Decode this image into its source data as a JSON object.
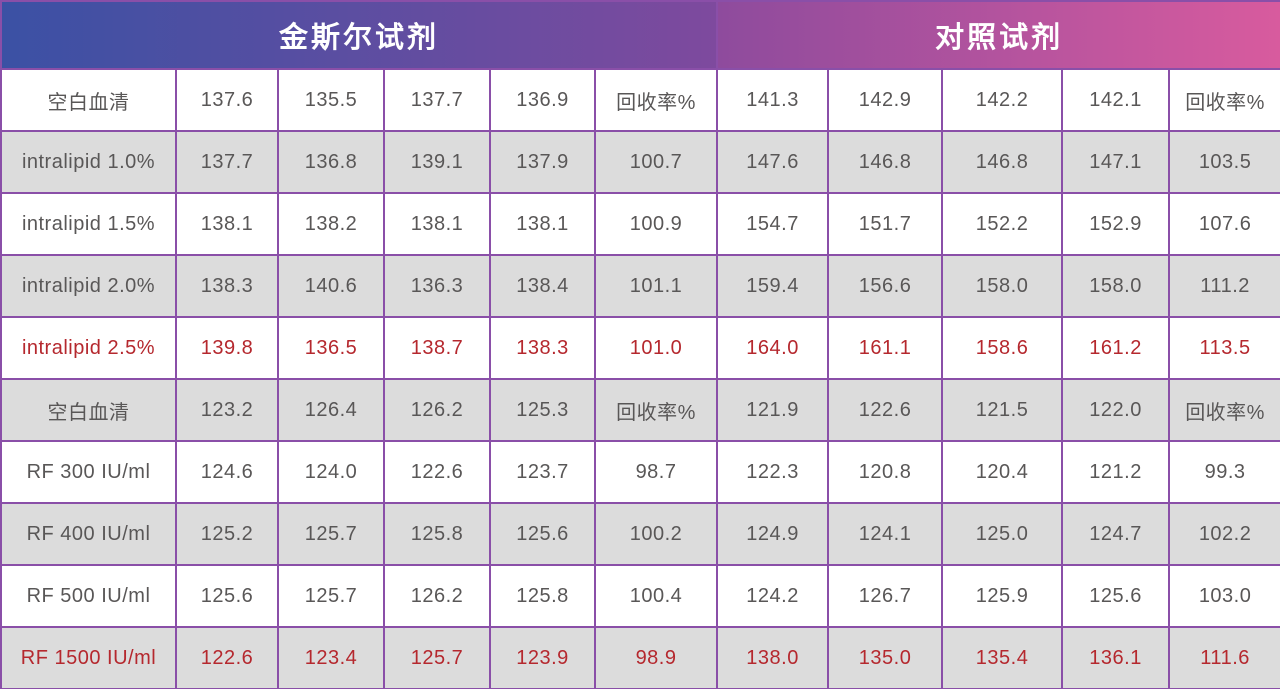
{
  "chart_data": {
    "type": "table",
    "section_headers": [
      {
        "label": "金斯尔试剂"
      },
      {
        "label": "对照试剂"
      }
    ],
    "rows": [
      {
        "label": "空白血清",
        "shaded": false,
        "red": false,
        "values": [
          "137.6",
          "135.5",
          "137.7",
          "136.9",
          "回收率%",
          "141.3",
          "142.9",
          "142.2",
          "142.1",
          "回收率%"
        ]
      },
      {
        "label": "intralipid 1.0%",
        "shaded": true,
        "red": false,
        "values": [
          "137.7",
          "136.8",
          "139.1",
          "137.9",
          "100.7",
          "147.6",
          "146.8",
          "146.8",
          "147.1",
          "103.5"
        ]
      },
      {
        "label": "intralipid 1.5%",
        "shaded": false,
        "red": false,
        "values": [
          "138.1",
          "138.2",
          "138.1",
          "138.1",
          "100.9",
          "154.7",
          "151.7",
          "152.2",
          "152.9",
          "107.6"
        ]
      },
      {
        "label": "intralipid 2.0%",
        "shaded": true,
        "red": false,
        "values": [
          "138.3",
          "140.6",
          "136.3",
          "138.4",
          "101.1",
          "159.4",
          "156.6",
          "158.0",
          "158.0",
          "111.2"
        ]
      },
      {
        "label": "intralipid 2.5%",
        "shaded": false,
        "red": true,
        "values": [
          "139.8",
          "136.5",
          "138.7",
          "138.3",
          "101.0",
          "164.0",
          "161.1",
          "158.6",
          "161.2",
          "113.5"
        ]
      },
      {
        "label": "空白血清",
        "shaded": true,
        "red": false,
        "values": [
          "123.2",
          "126.4",
          "126.2",
          "125.3",
          "回收率%",
          "121.9",
          "122.6",
          "121.5",
          "122.0",
          "回收率%"
        ]
      },
      {
        "label": "RF 300 IU/ml",
        "shaded": false,
        "red": false,
        "values": [
          "124.6",
          "124.0",
          "122.6",
          "123.7",
          "98.7",
          "122.3",
          "120.8",
          "120.4",
          "121.2",
          "99.3"
        ]
      },
      {
        "label": "RF 400 IU/ml",
        "shaded": true,
        "red": false,
        "values": [
          "125.2",
          "125.7",
          "125.8",
          "125.6",
          "100.2",
          "124.9",
          "124.1",
          "125.0",
          "124.7",
          "102.2"
        ]
      },
      {
        "label": "RF 500 IU/ml",
        "shaded": false,
        "red": false,
        "values": [
          "125.6",
          "125.7",
          "126.2",
          "125.8",
          "100.4",
          "124.2",
          "126.7",
          "125.9",
          "125.6",
          "103.0"
        ]
      },
      {
        "label": "RF 1500 IU/ml",
        "shaded": true,
        "red": true,
        "values": [
          "122.6",
          "123.4",
          "125.7",
          "123.9",
          "98.9",
          "138.0",
          "135.0",
          "135.4",
          "136.1",
          "111.6"
        ]
      }
    ]
  },
  "colors": {
    "gradient_blue": "#3b51a4",
    "gradient_mid_left": "#7e4a9e",
    "gradient_mid_right": "#8e4b9d",
    "gradient_pink": "#d85b9e",
    "border_purple": "#8a4fa8",
    "shaded_row_bg": "#dcdcdc",
    "row_bg": "#ffffff",
    "body_text": "#595757",
    "highlight_red": "#b5282e",
    "header_text": "#ffffff"
  }
}
